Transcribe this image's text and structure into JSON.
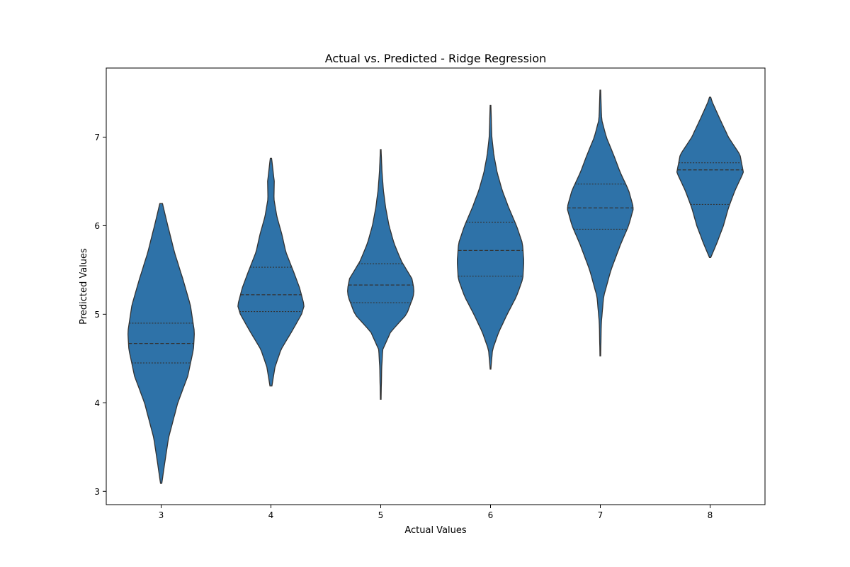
{
  "chart_data": {
    "type": "violin",
    "title": "Actual vs. Predicted - Ridge Regression",
    "xlabel": "Actual Values",
    "ylabel": "Predicted Values",
    "ylim": [
      2.85,
      7.78
    ],
    "yticks": [
      3,
      4,
      5,
      6,
      7
    ],
    "grid": false,
    "fill_color": "#2e72a8",
    "line_color": "#333333",
    "categories": [
      "3",
      "4",
      "5",
      "6",
      "7",
      "8"
    ],
    "violins": [
      {
        "category": "3",
        "min": 3.09,
        "max": 6.25,
        "q1": 4.45,
        "median": 4.67,
        "q3": 4.9,
        "profile": [
          [
            3.09,
            0.02
          ],
          [
            3.3,
            0.1
          ],
          [
            3.6,
            0.22
          ],
          [
            4.0,
            0.5
          ],
          [
            4.3,
            0.8
          ],
          [
            4.6,
            0.97
          ],
          [
            4.8,
            1.0
          ],
          [
            5.1,
            0.88
          ],
          [
            5.4,
            0.65
          ],
          [
            5.7,
            0.4
          ],
          [
            6.0,
            0.2
          ],
          [
            6.25,
            0.04
          ]
        ]
      },
      {
        "category": "4",
        "min": 4.19,
        "max": 6.76,
        "q1": 5.03,
        "median": 5.22,
        "q3": 5.53,
        "profile": [
          [
            4.19,
            0.03
          ],
          [
            4.4,
            0.12
          ],
          [
            4.6,
            0.3
          ],
          [
            4.8,
            0.62
          ],
          [
            5.0,
            0.92
          ],
          [
            5.1,
            1.0
          ],
          [
            5.3,
            0.86
          ],
          [
            5.5,
            0.66
          ],
          [
            5.7,
            0.45
          ],
          [
            5.9,
            0.33
          ],
          [
            6.1,
            0.18
          ],
          [
            6.3,
            0.09
          ],
          [
            6.5,
            0.1
          ],
          [
            6.76,
            0.02
          ]
        ]
      },
      {
        "category": "5",
        "min": 4.04,
        "max": 6.86,
        "q1": 5.13,
        "median": 5.33,
        "q3": 5.57,
        "profile": [
          [
            4.04,
            0.01
          ],
          [
            4.4,
            0.03
          ],
          [
            4.6,
            0.06
          ],
          [
            4.8,
            0.3
          ],
          [
            5.0,
            0.78
          ],
          [
            5.2,
            0.98
          ],
          [
            5.28,
            1.0
          ],
          [
            5.4,
            0.94
          ],
          [
            5.6,
            0.62
          ],
          [
            5.8,
            0.4
          ],
          [
            6.0,
            0.25
          ],
          [
            6.2,
            0.15
          ],
          [
            6.4,
            0.08
          ],
          [
            6.6,
            0.04
          ],
          [
            6.86,
            0.01
          ]
        ]
      },
      {
        "category": "6",
        "min": 4.38,
        "max": 7.36,
        "q1": 5.43,
        "median": 5.72,
        "q3": 6.04,
        "profile": [
          [
            4.38,
            0.01
          ],
          [
            4.6,
            0.06
          ],
          [
            4.8,
            0.25
          ],
          [
            5.0,
            0.5
          ],
          [
            5.2,
            0.78
          ],
          [
            5.4,
            0.97
          ],
          [
            5.6,
            1.0
          ],
          [
            5.8,
            0.96
          ],
          [
            6.0,
            0.78
          ],
          [
            6.2,
            0.55
          ],
          [
            6.4,
            0.35
          ],
          [
            6.6,
            0.2
          ],
          [
            6.8,
            0.1
          ],
          [
            7.0,
            0.04
          ],
          [
            7.36,
            0.01
          ]
        ]
      },
      {
        "category": "7",
        "min": 4.53,
        "max": 7.53,
        "q1": 5.96,
        "median": 6.2,
        "q3": 6.47,
        "profile": [
          [
            4.53,
            0.01
          ],
          [
            4.9,
            0.03
          ],
          [
            5.2,
            0.1
          ],
          [
            5.5,
            0.32
          ],
          [
            5.8,
            0.62
          ],
          [
            6.0,
            0.85
          ],
          [
            6.2,
            1.0
          ],
          [
            6.4,
            0.85
          ],
          [
            6.6,
            0.6
          ],
          [
            6.8,
            0.4
          ],
          [
            7.0,
            0.18
          ],
          [
            7.2,
            0.04
          ],
          [
            7.53,
            0.01
          ]
        ]
      },
      {
        "category": "8",
        "min": 5.64,
        "max": 7.45,
        "q1": 6.24,
        "median": 6.63,
        "q3": 6.71,
        "profile": [
          [
            5.64,
            0.02
          ],
          [
            5.8,
            0.2
          ],
          [
            6.0,
            0.4
          ],
          [
            6.2,
            0.55
          ],
          [
            6.4,
            0.75
          ],
          [
            6.6,
            1.0
          ],
          [
            6.8,
            0.9
          ],
          [
            7.0,
            0.55
          ],
          [
            7.2,
            0.3
          ],
          [
            7.4,
            0.06
          ],
          [
            7.45,
            0.02
          ]
        ]
      }
    ]
  }
}
